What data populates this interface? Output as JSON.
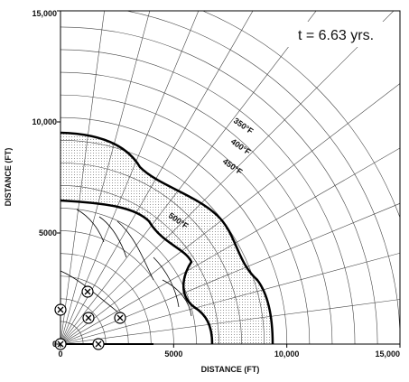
{
  "chart_data": {
    "type": "contour",
    "title": "t = 6.63 yrs.",
    "xlabel": "DISTANCE (FT)",
    "ylabel": "DISTANCE (FT)",
    "xlim": [
      0,
      15000
    ],
    "ylim": [
      0,
      15000
    ],
    "xticks": [
      0,
      5000,
      {
        "value": 10000,
        "label": "10,000"
      },
      {
        "value": 15000,
        "label": "15,000"
      }
    ],
    "yticks": [
      0,
      5000,
      {
        "value": 10000,
        "label": "10,000"
      },
      {
        "value": 15000,
        "label": "15,000"
      }
    ],
    "annotations": [
      "350°F",
      "400°F",
      "450°F",
      "500°F"
    ]
  }
}
